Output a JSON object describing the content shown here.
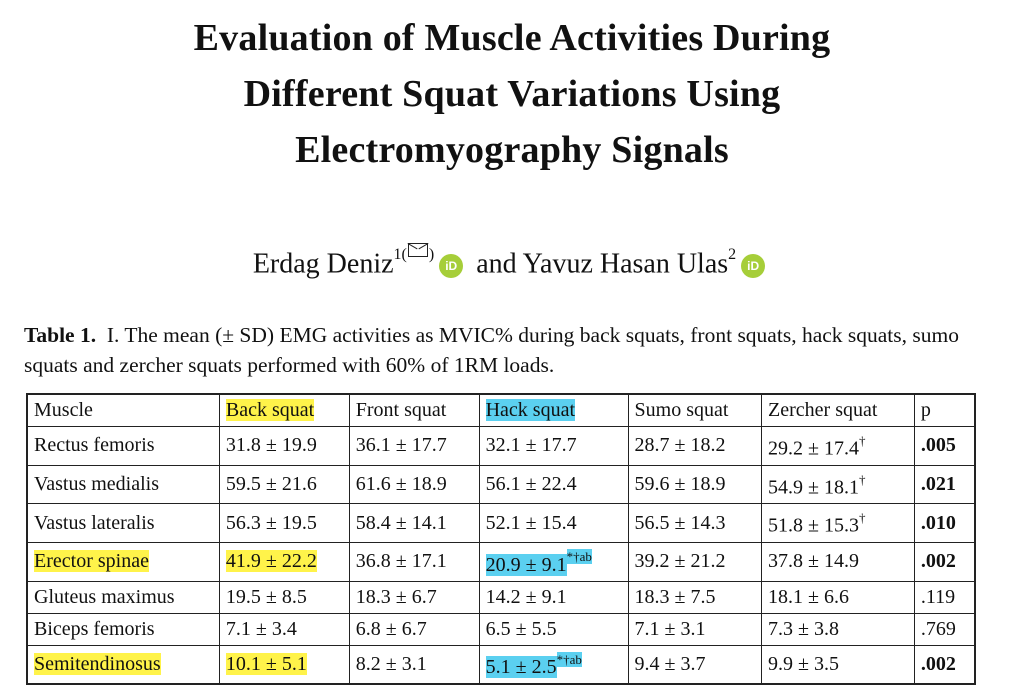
{
  "title": {
    "line1": "Evaluation of Muscle Activities During",
    "line2": "Different Squat Variations Using",
    "line3": "Electromyography Signals"
  },
  "authors": {
    "author1": "Erdag Deniz",
    "author1_sup": "1(",
    "author1_sup_end": ")",
    "connector": "and",
    "author2": "Yavuz Hasan Ulas",
    "author2_sup": "2",
    "orcid_label": "iD"
  },
  "caption": {
    "label": "Table 1.",
    "text": "I. The mean (± SD) EMG activities as MVIC% during back squats, front squats, hack squats, sumo squats and zercher squats performed with 60% of 1RM loads."
  },
  "colors": {
    "highlight_yellow": "#fff34a",
    "highlight_blue": "#5bd0f0"
  },
  "table": {
    "headers": [
      "Muscle",
      "Back squat",
      "Front squat",
      "Hack squat",
      "Sumo squat",
      "Zercher squat",
      "p"
    ],
    "rows": [
      {
        "muscle": "Rectus femoris",
        "back": "31.8 ± 19.9",
        "front": "36.1 ± 17.7",
        "hack": "32.1 ± 17.7",
        "hack_sup": "",
        "sumo": "28.7 ± 18.2",
        "zercher": "29.2 ± 17.4",
        "zercher_sup": "†",
        "p": ".005",
        "p_bold": true,
        "highlight": false
      },
      {
        "muscle": "Vastus medialis",
        "back": "59.5 ± 21.6",
        "front": "61.6 ± 18.9",
        "hack": "56.1 ± 22.4",
        "hack_sup": "",
        "sumo": "59.6 ± 18.9",
        "zercher": "54.9 ± 18.1",
        "zercher_sup": "†",
        "p": ".021",
        "p_bold": true,
        "highlight": false
      },
      {
        "muscle": "Vastus lateralis",
        "back": "56.3 ± 19.5",
        "front": "58.4 ± 14.1",
        "hack": "52.1 ± 15.4",
        "hack_sup": "",
        "sumo": "56.5 ± 14.3",
        "zercher": "51.8 ± 15.3",
        "zercher_sup": "†",
        "p": ".010",
        "p_bold": true,
        "highlight": false
      },
      {
        "muscle": "Erector spinae",
        "back": "41.9 ± 22.2",
        "front": "36.8 ± 17.1",
        "hack": "20.9 ± 9.1",
        "hack_sup": "*†ab",
        "sumo": "39.2 ± 21.2",
        "zercher": "37.8 ± 14.9",
        "zercher_sup": "",
        "p": ".002",
        "p_bold": true,
        "highlight": true
      },
      {
        "muscle": "Gluteus maximus",
        "back": "19.5 ± 8.5",
        "front": "18.3 ± 6.7",
        "hack": "14.2 ± 9.1",
        "hack_sup": "",
        "sumo": "18.3 ± 7.5",
        "zercher": "18.1 ± 6.6",
        "zercher_sup": "",
        "p": ".119",
        "p_bold": false,
        "highlight": false
      },
      {
        "muscle": "Biceps femoris",
        "back": "7.1 ± 3.4",
        "front": "6.8 ± 6.7",
        "hack": "6.5 ± 5.5",
        "hack_sup": "",
        "sumo": "7.1 ± 3.1",
        "zercher": "7.3 ± 3.8",
        "zercher_sup": "",
        "p": ".769",
        "p_bold": false,
        "highlight": false
      },
      {
        "muscle": "Semitendinosus",
        "back": "10.1 ± 5.1",
        "front": "8.2 ± 3.1",
        "hack": "5.1 ± 2.5",
        "hack_sup": "*†ab",
        "sumo": "9.4 ± 3.7",
        "zercher": "9.9 ± 3.5",
        "zercher_sup": "",
        "p": ".002",
        "p_bold": true,
        "highlight": true
      }
    ]
  }
}
